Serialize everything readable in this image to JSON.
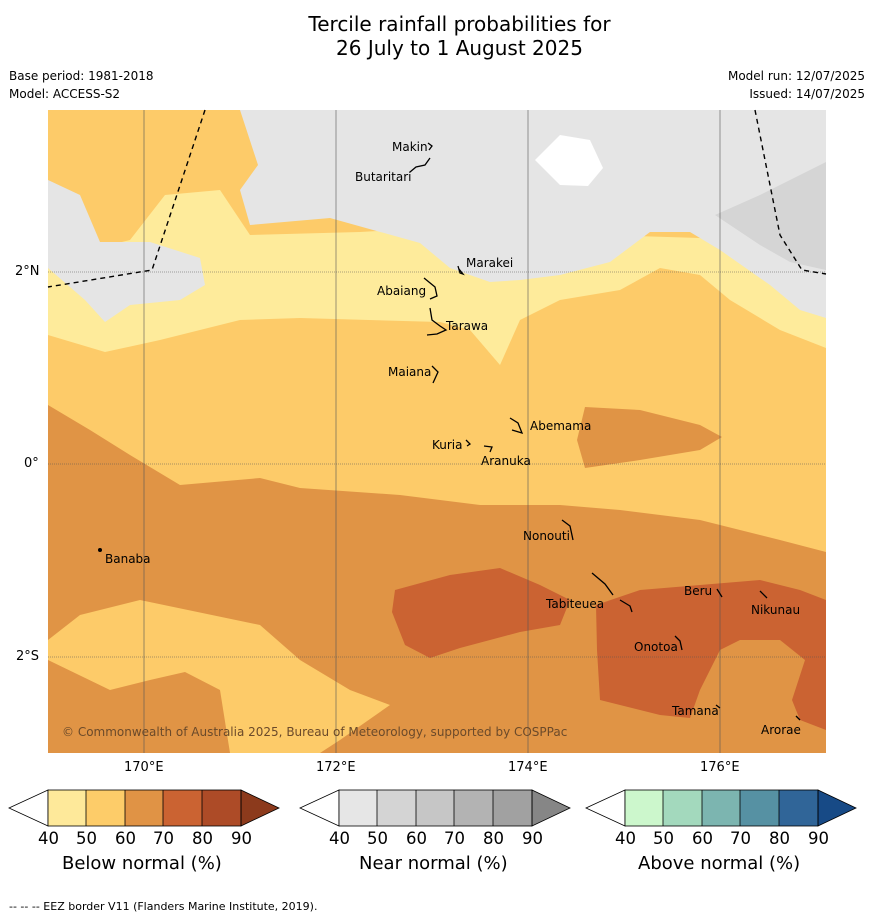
{
  "title_line1": "Tercile rainfall probabilities for",
  "title_line2": "26 July to 1 August 2025",
  "meta": {
    "base_period": "Base period: 1981-2018",
    "model": "Model: ACCESS-S2",
    "model_run": "Model run: 12/07/2025",
    "issued": "Issued: 14/07/2025"
  },
  "axes": {
    "lon_ticks": [
      "170°E",
      "172°E",
      "174°E",
      "176°E"
    ],
    "lat_ticks": [
      "2°N",
      "0°",
      "2°S"
    ]
  },
  "places": {
    "makin": "Makin",
    "butaritari": "Butaritari",
    "marakei": "Marakei",
    "abaiang": "Abaiang",
    "tarawa": "Tarawa",
    "maiana": "Maiana",
    "abemama": "Abemama",
    "kuria": "Kuria",
    "aranuka": "Aranuka",
    "banaba": "Banaba",
    "nonouti": "Nonouti",
    "tabiteuea": "Tabiteuea",
    "beru": "Beru",
    "nikunau": "Nikunau",
    "onotoa": "Onotoa",
    "tamana": "Tamana",
    "arorae": "Arorae"
  },
  "copyright": "© Commonwealth of Australia 2025, Bureau of Meteorology, supported by COSPPac",
  "colorbars": {
    "below": {
      "title": "Below normal (%)",
      "ticks": [
        "40",
        "50",
        "60",
        "70",
        "80",
        "90"
      ],
      "colors": [
        "#fee99a",
        "#fdcc69",
        "#e09345",
        "#cb6332",
        "#ad4b27",
        "#8c3a1c"
      ]
    },
    "near": {
      "title": "Near normal (%)",
      "ticks": [
        "40",
        "50",
        "60",
        "70",
        "80",
        "90"
      ],
      "colors": [
        "#e6e6e6",
        "#d4d4d4",
        "#c6c6c6",
        "#b3b3b3",
        "#a1a1a1",
        "#868686"
      ]
    },
    "above": {
      "title": "Above normal (%)",
      "ticks": [
        "40",
        "50",
        "60",
        "70",
        "80",
        "90"
      ],
      "colors": [
        "#ccf7cc",
        "#a3d9bd",
        "#7cb5b0",
        "#5691a3",
        "#306598",
        "#174a86"
      ]
    }
  },
  "map_colors": {
    "near_40_50": "#e5e5e5",
    "near_50_60": "#d5d5d5",
    "below_40_50": "#feeb9b",
    "below_50_60": "#fdcb69",
    "below_60_70": "#e09445",
    "below_70_80": "#cb6332"
  },
  "footnote": "--  --  -- EEZ border V11 (Flanders Marine Institute, 2019)."
}
